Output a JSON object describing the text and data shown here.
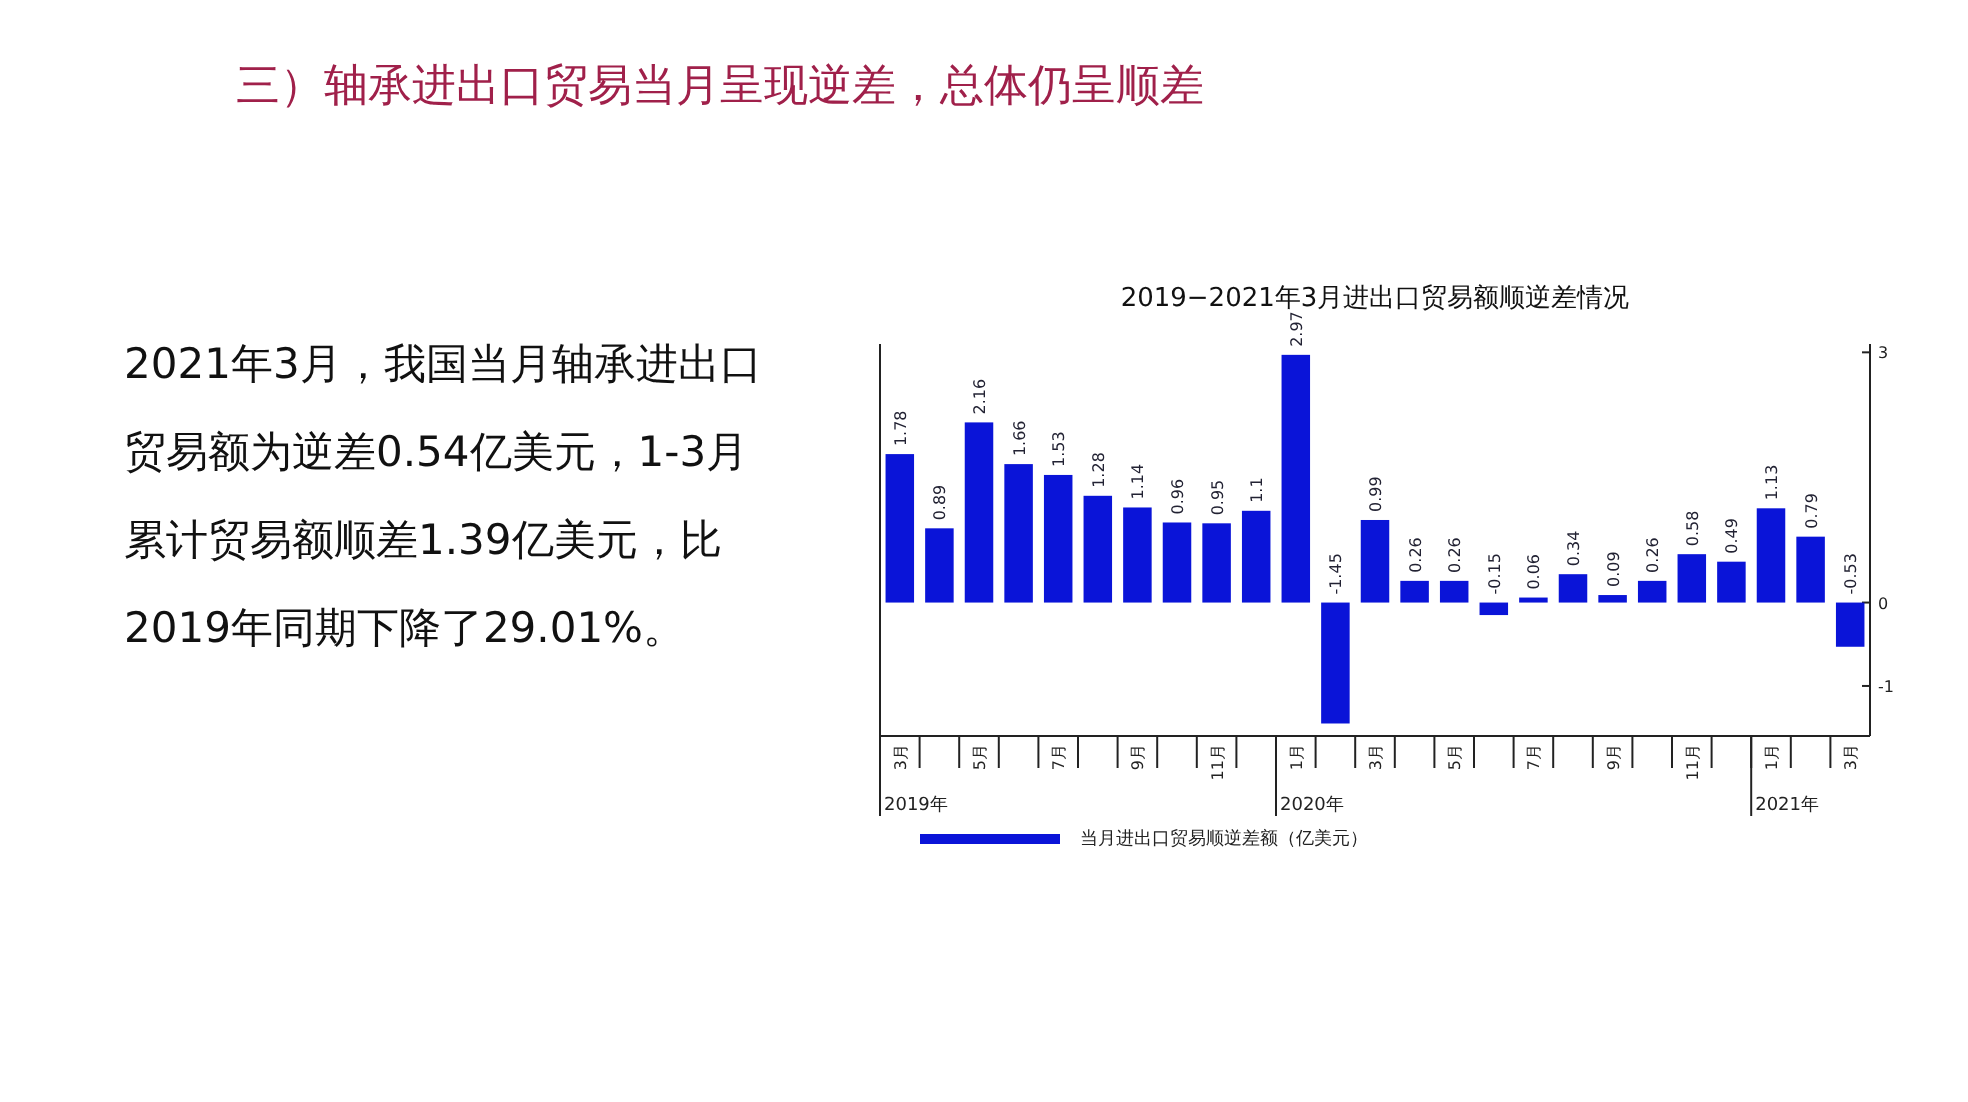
{
  "chart_data": {
    "type": "bar",
    "title": "三）轴承进出口贸易当月呈现逆差，总体仍呈顺差",
    "subtitle": "2019−2021年3月进出口贸易额顺逆差情况",
    "categories": [
      "3月",
      null,
      "5月",
      null,
      "7月",
      null,
      "9月",
      null,
      "11月",
      null,
      "1月",
      null,
      "3月",
      null,
      "5月",
      null,
      "7月",
      null,
      "9月",
      null,
      "11月",
      null,
      "1月",
      null,
      "3月"
    ],
    "series": [
      {
        "name": "当月进出口贸易顺逆差额（亿美元）",
        "color": "#0a14d8",
        "values": [
          1.78,
          0.89,
          2.16,
          1.66,
          1.53,
          1.28,
          1.14,
          0.96,
          0.95,
          1.1,
          2.97,
          -1.45,
          0.99,
          0.26,
          0.26,
          -0.15,
          0.06,
          0.34,
          0.09,
          0.26,
          0.58,
          0.49,
          1.13,
          0.79,
          -0.53
        ]
      }
    ],
    "ylim": [
      -1.6,
      3.1
    ],
    "yticks": [
      -1,
      0,
      3
    ],
    "data_labels": true,
    "legend": "bottom",
    "grid": false,
    "annotations": [
      "2021年3月，我国当月轴承进出口贸易额为逆差0.54亿美元，1-3月累计贸易额顺差1.39亿美元，比2019年同期下降了29.01%。",
      "2019年",
      "2020年",
      "2021年"
    ]
  }
}
